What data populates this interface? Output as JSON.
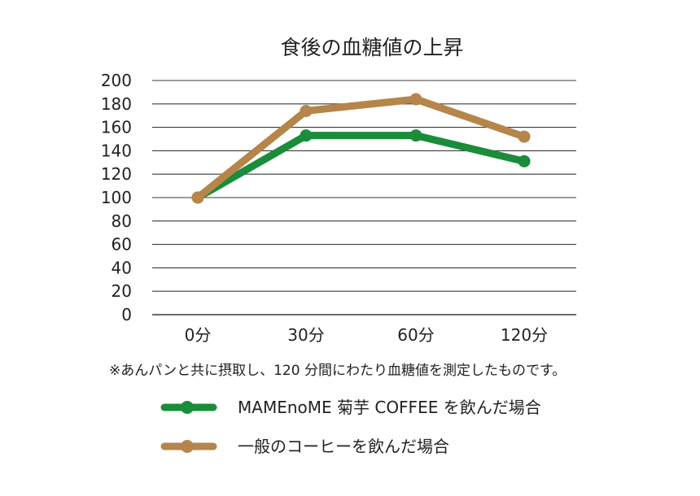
{
  "chart_data": {
    "type": "line",
    "title": "食後の血糖値の上昇",
    "categories": [
      "0分",
      "30分",
      "60分",
      "120分"
    ],
    "ylim": [
      0,
      200
    ],
    "yticks": [
      "200",
      "180",
      "160",
      "140",
      "120",
      "100",
      "80",
      "60",
      "40",
      "20",
      "0"
    ],
    "grid": true,
    "legend_position": "bottom",
    "series": [
      {
        "name": "MAMEnoME 菊芋 COFFEE を飲んだ場合",
        "values": [
          100,
          153,
          153,
          131
        ],
        "color": "#1a8c3a"
      },
      {
        "name": "一般のコーヒーを飲んだ場合",
        "values": [
          100,
          174,
          184,
          152
        ],
        "color": "#b5854a"
      }
    ],
    "note": "※あんパンと共に摂取し、120 分間にわたり血糖値を測定したものです。"
  }
}
